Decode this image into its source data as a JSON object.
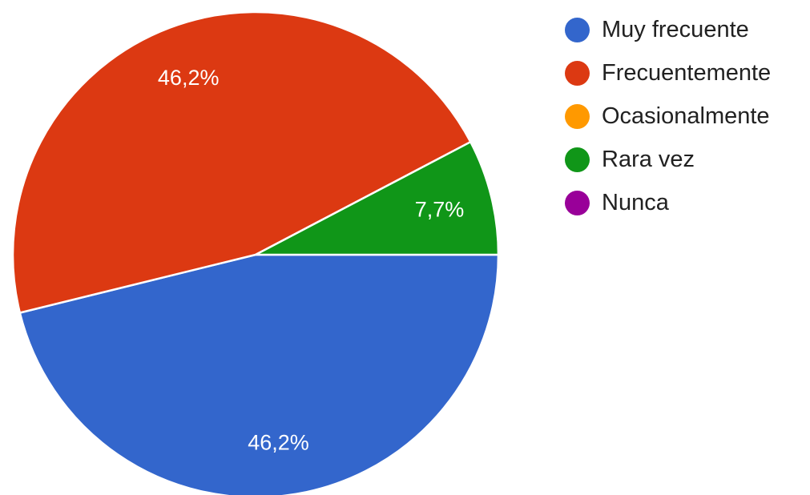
{
  "chart_data": {
    "type": "pie",
    "title": "",
    "slices": [
      {
        "label": "Muy frecuente",
        "value": 46.2,
        "display": "46,2%",
        "color": "#3366cc"
      },
      {
        "label": "Frecuentemente",
        "value": 46.2,
        "display": "46,2%",
        "color": "#dc3912"
      },
      {
        "label": "Ocasionalmente",
        "value": 0,
        "display": "",
        "color": "#ff9900"
      },
      {
        "label": "Rara vez",
        "value": 7.7,
        "display": "7,7%",
        "color": "#109618"
      },
      {
        "label": "Nunca",
        "value": 0,
        "display": "",
        "color": "#990099"
      }
    ],
    "legend_position": "right"
  }
}
